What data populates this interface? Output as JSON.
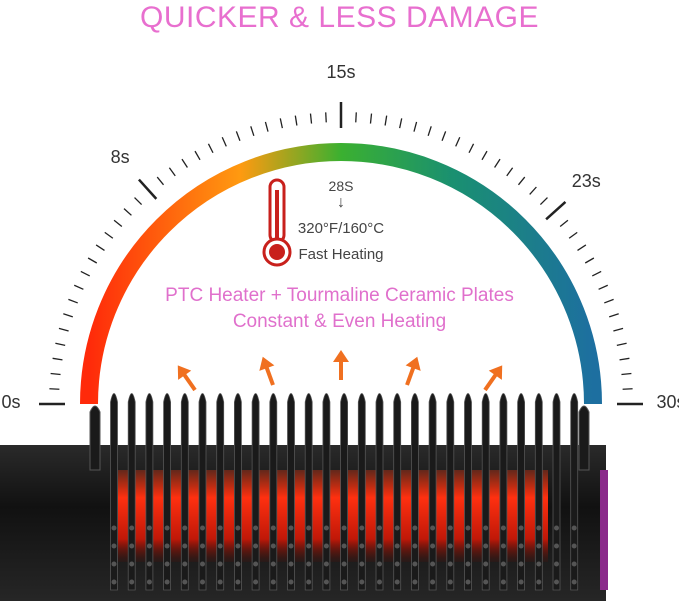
{
  "title": "QUICKER & LESS DAMAGE",
  "dial": {
    "labels": [
      {
        "text": "0s",
        "value": 0
      },
      {
        "text": "8s",
        "value": 8
      },
      {
        "text": "15s",
        "value": 15
      },
      {
        "text": "23s",
        "value": 23
      },
      {
        "text": "30s",
        "value": 30
      }
    ],
    "range": [
      0,
      30
    ],
    "gradient": [
      "#ff2a0a",
      "#ff9a10",
      "#2db032",
      "#1d6fa0"
    ]
  },
  "heat_info": {
    "time": "28S",
    "arrow": "↓",
    "temperature": "320°F/160°C",
    "caption": "Fast Heating"
  },
  "feature": {
    "line1": "PTC Heater + Tourmaline Ceramic Plates",
    "line2": "Constant & Even Heating"
  },
  "icons": [
    "thermometer-icon",
    "heat-arrow-icon"
  ]
}
